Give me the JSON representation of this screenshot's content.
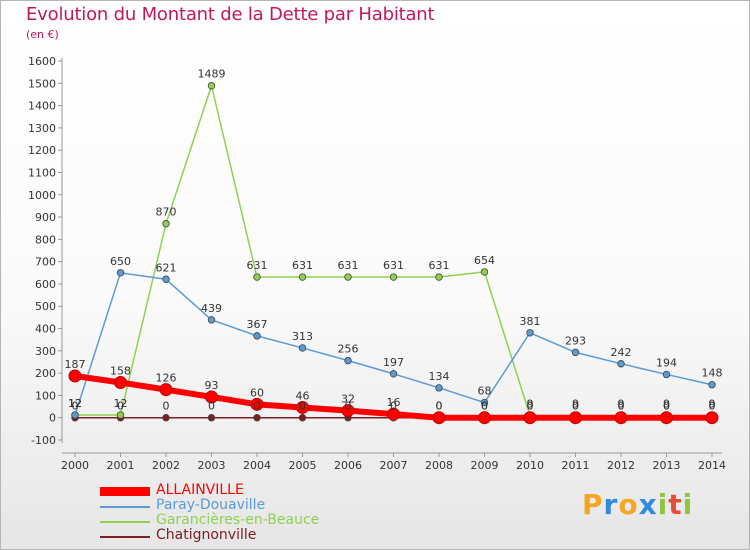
{
  "title": "Evolution du Montant de la Dette par Habitant",
  "subtitle": "(en €)",
  "chart_data": {
    "type": "line",
    "title": "Evolution du Montant de la Dette par Habitant",
    "subtitle": "(en €)",
    "x": [
      "2000",
      "2001",
      "2002",
      "2003",
      "2004",
      "2005",
      "2006",
      "2007",
      "2008",
      "2009",
      "2010",
      "2011",
      "2012",
      "2013",
      "2014"
    ],
    "yticks": [
      -100,
      0,
      100,
      200,
      300,
      400,
      500,
      600,
      700,
      800,
      900,
      1000,
      1100,
      1200,
      1300,
      1400,
      1500,
      1600
    ],
    "ylim": [
      -100,
      1600
    ],
    "grid": false,
    "legend_position": "bottom-left",
    "series": [
      {
        "name": "ALLAINVILLE",
        "color": "#ff0000",
        "values": [
          187,
          158,
          126,
          93,
          60,
          46,
          32,
          16,
          0,
          0,
          0,
          0,
          0,
          0,
          0
        ],
        "labels": [
          "187",
          "158",
          "126",
          "93",
          "60",
          "46",
          "32",
          "16",
          "0",
          "0",
          "0",
          "0",
          "0",
          "0",
          "0"
        ]
      },
      {
        "name": "Paray-Douaville",
        "color": "#5b9bd5",
        "values": [
          12,
          650,
          621,
          439,
          367,
          313,
          256,
          197,
          134,
          68,
          381,
          293,
          242,
          194,
          148
        ],
        "labels": [
          "12",
          "650",
          "621",
          "439",
          "367",
          "313",
          "256",
          "197",
          "134",
          "68",
          "381",
          "293",
          "242",
          "194",
          "148"
        ]
      },
      {
        "name": "Garancières-en-Beauce",
        "color": "#8fd14f",
        "values": [
          12,
          12,
          870,
          1489,
          631,
          631,
          631,
          631,
          631,
          654,
          9,
          9,
          9,
          9,
          9
        ],
        "labels": [
          "12",
          "12",
          "870",
          "1489",
          "631",
          "631",
          "631",
          "631",
          "631",
          "654",
          "9",
          "9",
          "9",
          "9",
          "9"
        ]
      },
      {
        "name": "Chatignonville",
        "color": "#7a2020",
        "values": [
          0,
          0,
          0,
          0,
          0,
          0,
          0,
          0,
          0,
          0,
          0,
          0,
          0,
          0,
          0
        ],
        "labels": [
          "0",
          "0",
          "0",
          "0",
          "0",
          "0",
          "0",
          "0",
          "0",
          "0",
          "0",
          "0",
          "0",
          "0",
          "0"
        ]
      }
    ]
  },
  "logo": {
    "text": "Proxiti",
    "letters": [
      {
        "char": "P",
        "color": "#f5a623"
      },
      {
        "char": "r",
        "color": "#2f8ae0"
      },
      {
        "char": "o",
        "color": "#f5a623"
      },
      {
        "char": "x",
        "color": "#2f8ae0"
      },
      {
        "char": "i",
        "color": "#8cc63f"
      },
      {
        "char": "t",
        "color": "#e74c3c"
      },
      {
        "char": "i",
        "color": "#8cc63f"
      }
    ]
  }
}
